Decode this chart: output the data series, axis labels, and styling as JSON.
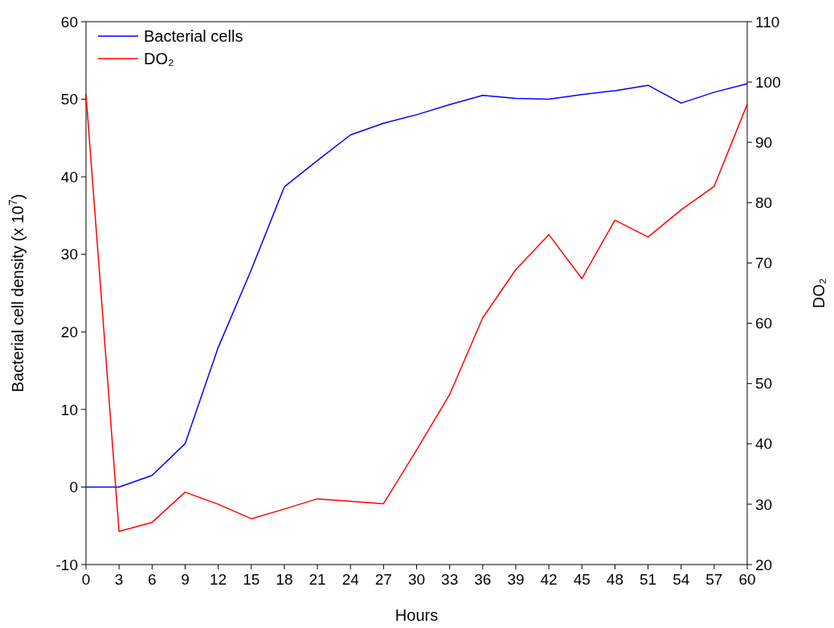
{
  "chart_data": {
    "type": "line",
    "xlabel": "Hours",
    "ylabel": "Bacterial cell density (x 10$^{7}$)",
    "y2label": "DO₂",
    "x": [
      0,
      3,
      6,
      9,
      12,
      15,
      18,
      21,
      24,
      27,
      30,
      33,
      36,
      39,
      42,
      45,
      48,
      51,
      54,
      57,
      60
    ],
    "xlim": [
      0,
      60
    ],
    "xticks": [
      0,
      3,
      6,
      9,
      12,
      15,
      18,
      21,
      24,
      27,
      30,
      33,
      36,
      39,
      42,
      45,
      48,
      51,
      54,
      57,
      60
    ],
    "ylim": [
      -10,
      60
    ],
    "yticks": [
      -10,
      0,
      10,
      20,
      30,
      40,
      50,
      60
    ],
    "y2lim": [
      20,
      110
    ],
    "y2ticks": [
      20,
      30,
      40,
      50,
      60,
      70,
      80,
      90,
      100,
      110
    ],
    "legend": "top left",
    "grid": false,
    "marker": "none",
    "line_style": "solid",
    "series": [
      {
        "name": "Bacterial cells",
        "color": "#0000ff",
        "values": [
          0,
          0,
          1.5,
          5.6,
          18,
          28,
          38.7,
          42.1,
          45.4,
          46.9,
          48,
          49.3,
          50.5,
          50.1,
          50,
          50.6,
          51.1,
          51.8,
          49.5,
          50.9,
          52
        ]
      },
      {
        "name": "DO₂",
        "color": "#ff0000",
        "axis": "y2",
        "values": [
          98,
          25.5,
          27,
          32,
          30,
          27.6,
          29.2,
          30.9,
          30.5,
          30.1,
          39,
          48.2,
          60.9,
          68.9,
          74.7,
          67.4,
          77.1,
          74.3,
          78.8,
          82.7,
          96.3
        ]
      }
    ]
  }
}
